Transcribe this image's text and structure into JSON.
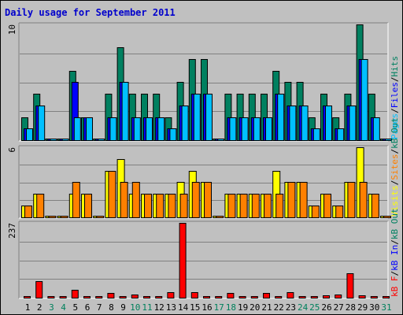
{
  "chart_data": {
    "type": "bar",
    "title": "Daily usage for September 2011",
    "categories": [
      "1",
      "2",
      "3",
      "4",
      "5",
      "6",
      "7",
      "8",
      "9",
      "10",
      "11",
      "12",
      "13",
      "14",
      "15",
      "16",
      "17",
      "18",
      "19",
      "20",
      "21",
      "22",
      "23",
      "24",
      "25",
      "26",
      "27",
      "28",
      "29",
      "30",
      "31"
    ],
    "weekend_days": [
      "3",
      "4",
      "10",
      "11",
      "17",
      "18",
      "24",
      "25",
      "31"
    ],
    "panels": [
      {
        "id": "top",
        "scale_label": "10",
        "scale_max": 10,
        "legend": [
          "Pages",
          "/",
          "Files",
          "/",
          "Hits"
        ],
        "legend_colors": [
          "#00c0ff",
          "#000000",
          "#0000ff",
          "#000000",
          "#008060"
        ],
        "series": [
          {
            "name": "Hits",
            "color": "#008060",
            "values": [
              2,
              4,
              0,
              0,
              6,
              2,
              0,
              4,
              8,
              4,
              4,
              4,
              2,
              5,
              7,
              7,
              0,
              4,
              4,
              4,
              4,
              6,
              5,
              5,
              2,
              4,
              2,
              4,
              10,
              4,
              0
            ]
          },
          {
            "name": "Files",
            "color": "#0000ff",
            "values": [
              1,
              3,
              0,
              0,
              5,
              2,
              0,
              2,
              5,
              2,
              2,
              2,
              1,
              3,
              4,
              4,
              0,
              2,
              2,
              2,
              2,
              4,
              3,
              3,
              1,
              3,
              1,
              3,
              7,
              2,
              0
            ]
          },
          {
            "name": "Pages",
            "color": "#00c0ff",
            "values": [
              1,
              3,
              0,
              0,
              2,
              2,
              0,
              2,
              5,
              2,
              2,
              2,
              1,
              3,
              4,
              4,
              0,
              2,
              2,
              2,
              2,
              4,
              3,
              3,
              1,
              3,
              1,
              3,
              7,
              2,
              0
            ]
          }
        ]
      },
      {
        "id": "mid",
        "scale_label": "6",
        "scale_max": 6,
        "legend": [
          "Visits",
          "/",
          "Sites",
          "/",
          "kB Out"
        ],
        "legend_colors": [
          "#ffff00",
          "#000000",
          "#ff8000",
          "#000000",
          "#008060"
        ],
        "series": [
          {
            "name": "Visits",
            "color": "#ffff00",
            "values": [
              1,
              2,
              0,
              0,
              2,
              2,
              0,
              4,
              5,
              2,
              2,
              2,
              2,
              3,
              4,
              3,
              0,
              2,
              2,
              2,
              2,
              4,
              3,
              3,
              1,
              2,
              1,
              3,
              6,
              2,
              0
            ]
          },
          {
            "name": "Sites",
            "color": "#ff8000",
            "values": [
              1,
              2,
              0,
              0,
              3,
              2,
              0,
              4,
              3,
              3,
              2,
              2,
              2,
              2,
              3,
              3,
              0,
              2,
              2,
              2,
              2,
              2,
              3,
              3,
              1,
              2,
              1,
              3,
              3,
              2,
              0
            ]
          }
        ]
      },
      {
        "id": "bot",
        "scale_label": "237",
        "scale_max": 237,
        "legend": [
          "kB F",
          "/",
          "kB In",
          "/",
          "kB Out"
        ],
        "legend_colors": [
          "#ff0000",
          "#000000",
          "#0000ff",
          "#000000",
          "#008060"
        ],
        "series": [
          {
            "name": "kB F",
            "color": "#ff0000",
            "values": [
              2,
              52,
              0,
              2,
              25,
              4,
              0,
              15,
              6,
              10,
              4,
              4,
              18,
              237,
              18,
              0,
              0,
              15,
              4,
              4,
              15,
              4,
              18,
              4,
              4,
              8,
              10,
              78,
              8,
              4,
              0
            ]
          }
        ]
      }
    ]
  }
}
